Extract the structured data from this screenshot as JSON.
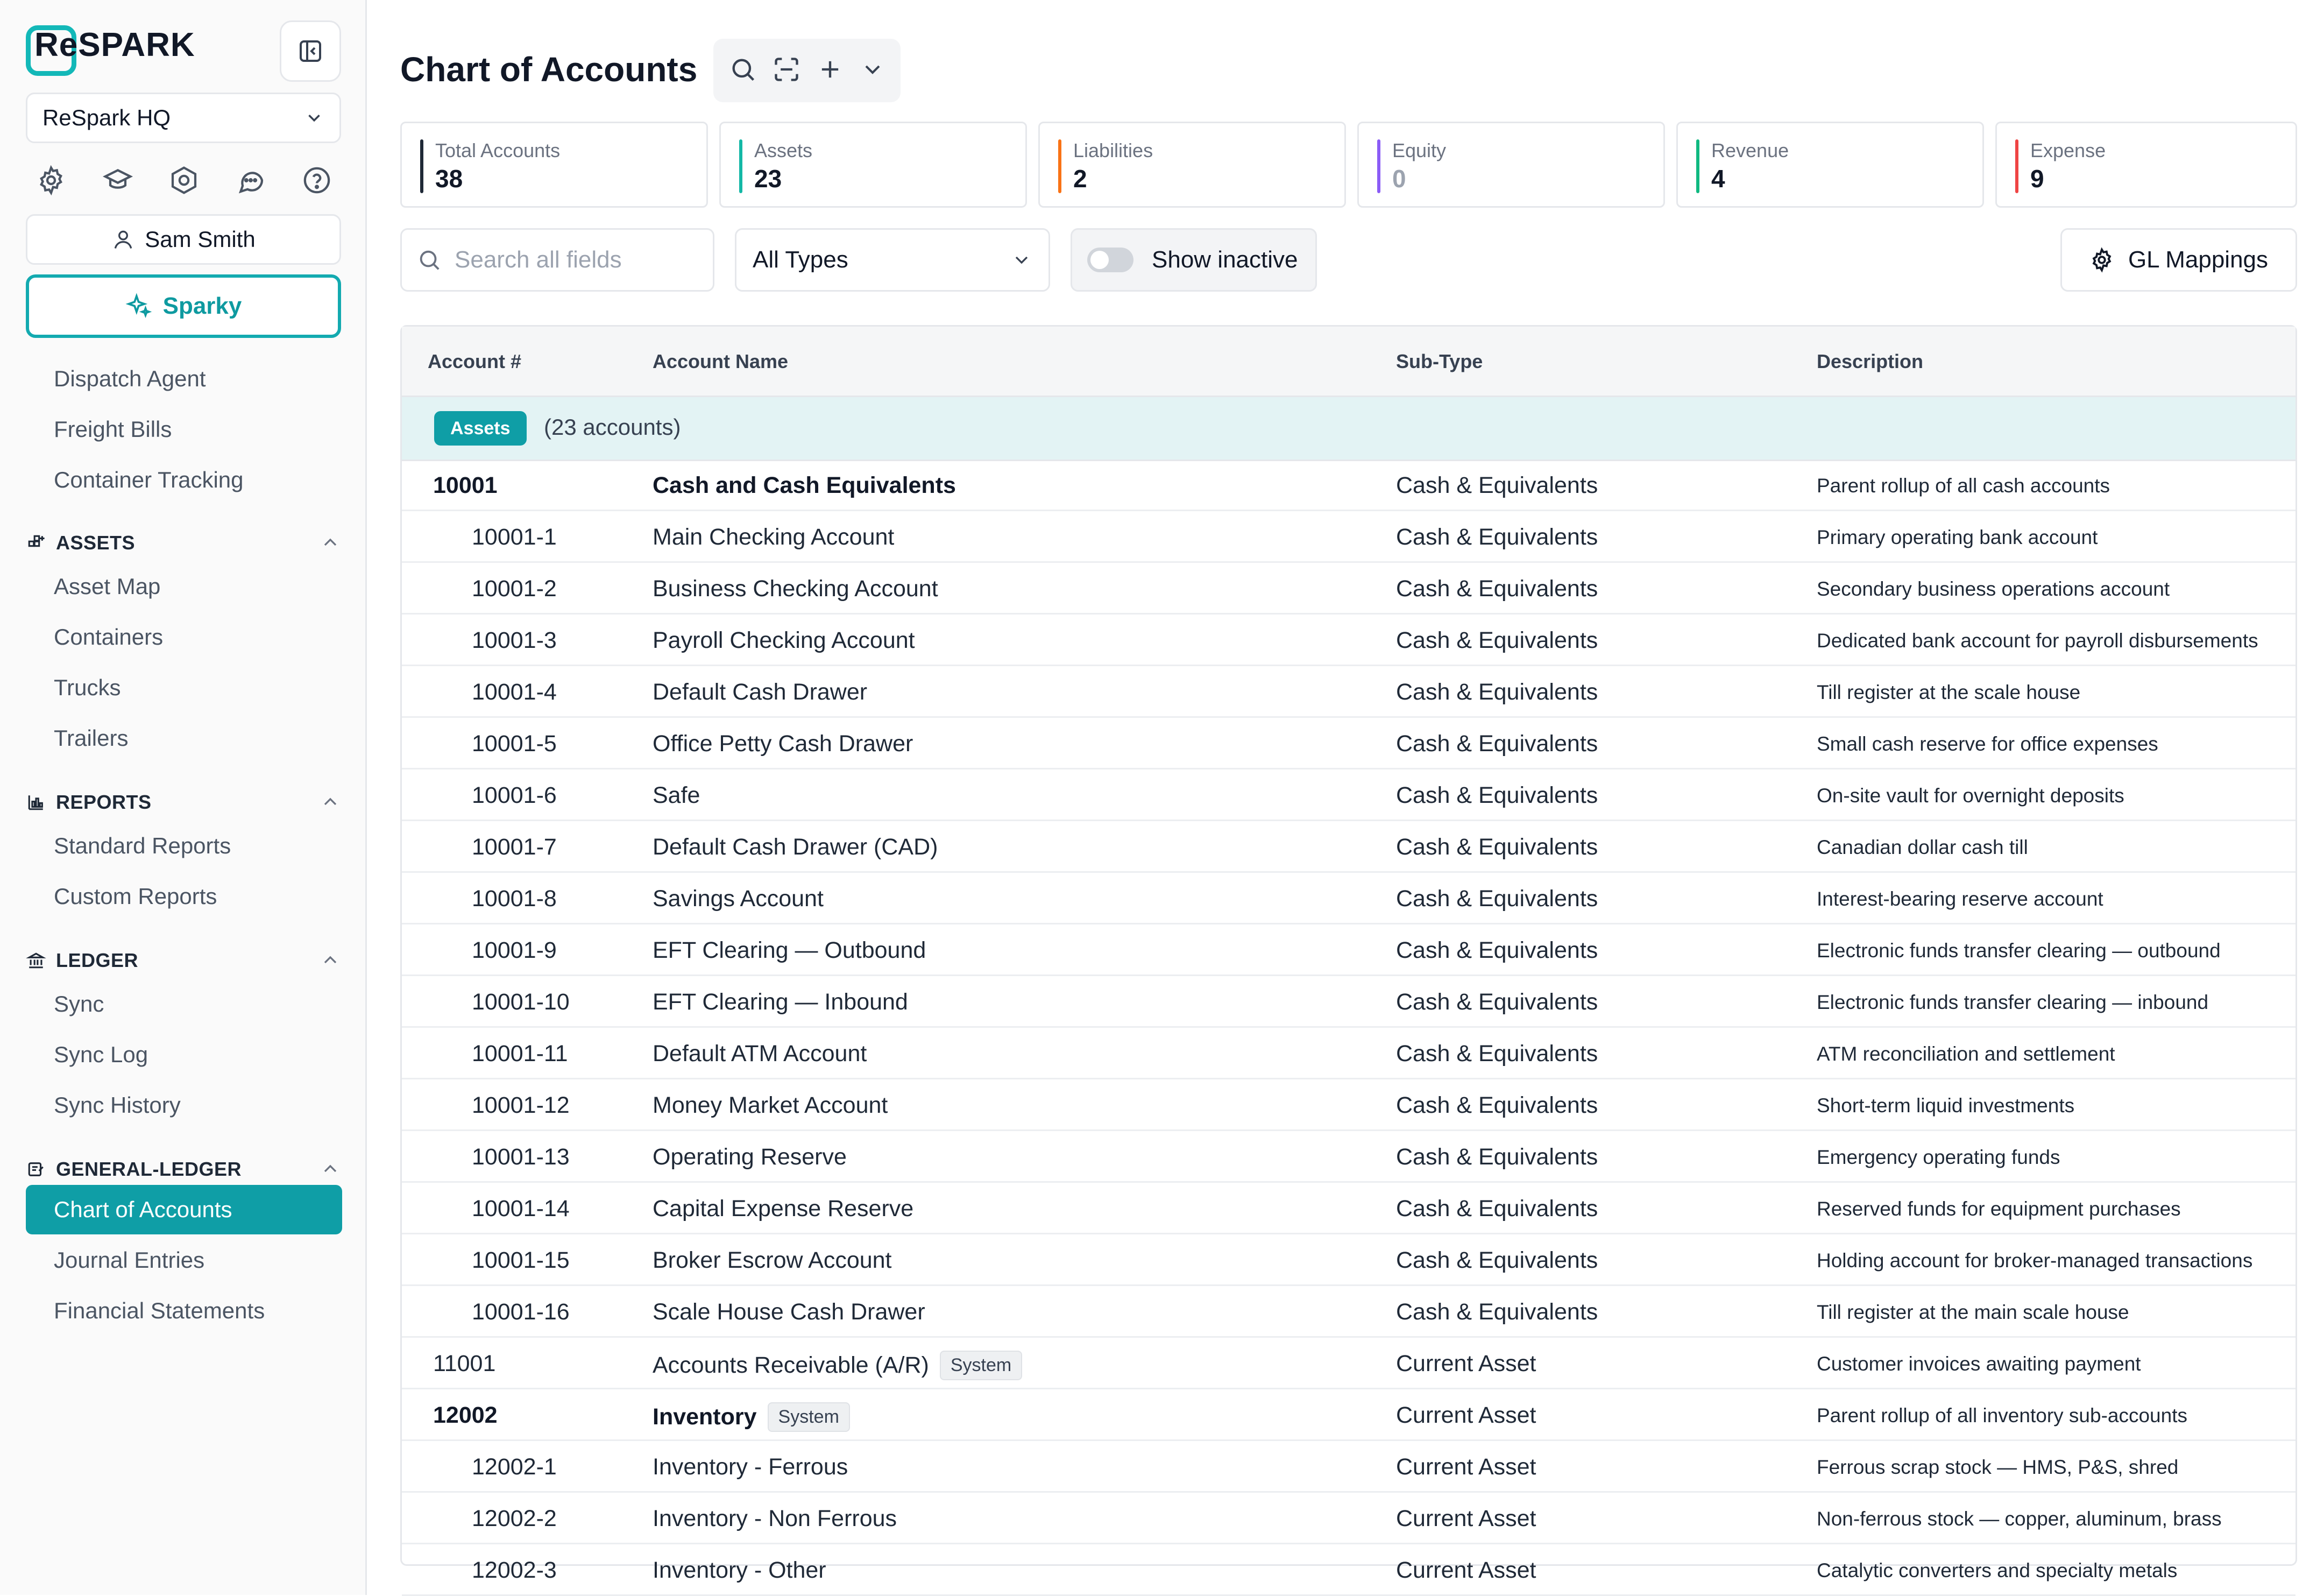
{
  "sidebar": {
    "logo_text": "ReSPARK",
    "org": "ReSpark HQ",
    "user": "Sam Smith",
    "sparky": "Sparky",
    "top_items": [
      "Dispatch Agent",
      "Freight Bills",
      "Container Tracking"
    ],
    "sections": [
      {
        "title": "ASSETS",
        "items": [
          "Asset Map",
          "Containers",
          "Trucks",
          "Trailers"
        ]
      },
      {
        "title": "REPORTS",
        "items": [
          "Standard Reports",
          "Custom Reports"
        ]
      },
      {
        "title": "LEDGER",
        "items": [
          "Sync",
          "Sync Log",
          "Sync History"
        ]
      },
      {
        "title": "GENERAL-LEDGER",
        "items": [
          "Chart of Accounts",
          "Journal Entries",
          "Financial Statements"
        ]
      }
    ],
    "active_item": "Chart of Accounts",
    "icons": [
      "gear-icon",
      "graduation-cap-icon",
      "hexagon-settings-icon",
      "chat-icon",
      "help-icon"
    ]
  },
  "header": {
    "title": "Chart of Accounts"
  },
  "stats": [
    {
      "label": "Total Accounts",
      "value": "38",
      "color": "#1f2937"
    },
    {
      "label": "Assets",
      "value": "23",
      "color": "#14b8a6"
    },
    {
      "label": "Liabilities",
      "value": "2",
      "color": "#f97316"
    },
    {
      "label": "Equity",
      "value": "0",
      "color": "#8b5cf6"
    },
    {
      "label": "Revenue",
      "value": "4",
      "color": "#10b981"
    },
    {
      "label": "Expense",
      "value": "9",
      "color": "#ef4444"
    }
  ],
  "filters": {
    "search_placeholder": "Search all fields",
    "type_value": "All Types",
    "show_inactive": "Show inactive",
    "gl_mappings": "GL Mappings"
  },
  "table": {
    "columns": [
      "Account #",
      "Account Name",
      "Sub-Type",
      "Description"
    ],
    "group": {
      "badge": "Assets",
      "count": "(23 accounts)"
    },
    "rows": [
      {
        "num": "10001",
        "name": "Cash and Cash Equivalents",
        "sub": "Cash & Equivalents",
        "desc": "Parent rollup of all cash accounts",
        "parent": true,
        "child": false,
        "badge": ""
      },
      {
        "num": "10001-1",
        "name": "Main Checking Account",
        "sub": "Cash & Equivalents",
        "desc": "Primary operating bank account",
        "parent": false,
        "child": true,
        "badge": ""
      },
      {
        "num": "10001-2",
        "name": "Business Checking Account",
        "sub": "Cash & Equivalents",
        "desc": "Secondary business operations account",
        "parent": false,
        "child": true,
        "badge": ""
      },
      {
        "num": "10001-3",
        "name": "Payroll Checking Account",
        "sub": "Cash & Equivalents",
        "desc": "Dedicated bank account for payroll disbursements",
        "parent": false,
        "child": true,
        "badge": ""
      },
      {
        "num": "10001-4",
        "name": "Default Cash Drawer",
        "sub": "Cash & Equivalents",
        "desc": "Till register at the scale house",
        "parent": false,
        "child": true,
        "badge": ""
      },
      {
        "num": "10001-5",
        "name": "Office Petty Cash Drawer",
        "sub": "Cash & Equivalents",
        "desc": "Small cash reserve for office expenses",
        "parent": false,
        "child": true,
        "badge": ""
      },
      {
        "num": "10001-6",
        "name": "Safe",
        "sub": "Cash & Equivalents",
        "desc": "On-site vault for overnight deposits",
        "parent": false,
        "child": true,
        "badge": ""
      },
      {
        "num": "10001-7",
        "name": "Default Cash Drawer (CAD)",
        "sub": "Cash & Equivalents",
        "desc": "Canadian dollar cash till",
        "parent": false,
        "child": true,
        "badge": ""
      },
      {
        "num": "10001-8",
        "name": "Savings Account",
        "sub": "Cash & Equivalents",
        "desc": "Interest-bearing reserve account",
        "parent": false,
        "child": true,
        "badge": ""
      },
      {
        "num": "10001-9",
        "name": "EFT Clearing — Outbound",
        "sub": "Cash & Equivalents",
        "desc": "Electronic funds transfer clearing — outbound",
        "parent": false,
        "child": true,
        "badge": ""
      },
      {
        "num": "10001-10",
        "name": "EFT Clearing — Inbound",
        "sub": "Cash & Equivalents",
        "desc": "Electronic funds transfer clearing — inbound",
        "parent": false,
        "child": true,
        "badge": ""
      },
      {
        "num": "10001-11",
        "name": "Default ATM Account",
        "sub": "Cash & Equivalents",
        "desc": "ATM reconciliation and settlement",
        "parent": false,
        "child": true,
        "badge": ""
      },
      {
        "num": "10001-12",
        "name": "Money Market Account",
        "sub": "Cash & Equivalents",
        "desc": "Short-term liquid investments",
        "parent": false,
        "child": true,
        "badge": ""
      },
      {
        "num": "10001-13",
        "name": "Operating Reserve",
        "sub": "Cash & Equivalents",
        "desc": "Emergency operating funds",
        "parent": false,
        "child": true,
        "badge": ""
      },
      {
        "num": "10001-14",
        "name": "Capital Expense Reserve",
        "sub": "Cash & Equivalents",
        "desc": "Reserved funds for equipment purchases",
        "parent": false,
        "child": true,
        "badge": ""
      },
      {
        "num": "10001-15",
        "name": "Broker Escrow Account",
        "sub": "Cash & Equivalents",
        "desc": "Holding account for broker-managed transactions",
        "parent": false,
        "child": true,
        "badge": ""
      },
      {
        "num": "10001-16",
        "name": "Scale House Cash Drawer",
        "sub": "Cash & Equivalents",
        "desc": "Till register at the main scale house",
        "parent": false,
        "child": true,
        "badge": ""
      },
      {
        "num": "11001",
        "name": "Accounts Receivable (A/R)",
        "sub": "Current Asset",
        "desc": "Customer invoices awaiting payment",
        "parent": false,
        "child": false,
        "badge": "System"
      },
      {
        "num": "12002",
        "name": "Inventory",
        "sub": "Current Asset",
        "desc": "Parent rollup of all inventory sub-accounts",
        "parent": true,
        "child": false,
        "badge": "System"
      },
      {
        "num": "12002-1",
        "name": "Inventory - Ferrous",
        "sub": "Current Asset",
        "desc": "Ferrous scrap stock — HMS, P&S, shred",
        "parent": false,
        "child": true,
        "badge": ""
      },
      {
        "num": "12002-2",
        "name": "Inventory - Non Ferrous",
        "sub": "Current Asset",
        "desc": "Non-ferrous stock — copper, aluminum, brass",
        "parent": false,
        "child": true,
        "badge": ""
      },
      {
        "num": "12002-3",
        "name": "Inventory - Other",
        "sub": "Current Asset",
        "desc": "Catalytic converters and specialty metals",
        "parent": false,
        "child": true,
        "badge": ""
      }
    ]
  }
}
